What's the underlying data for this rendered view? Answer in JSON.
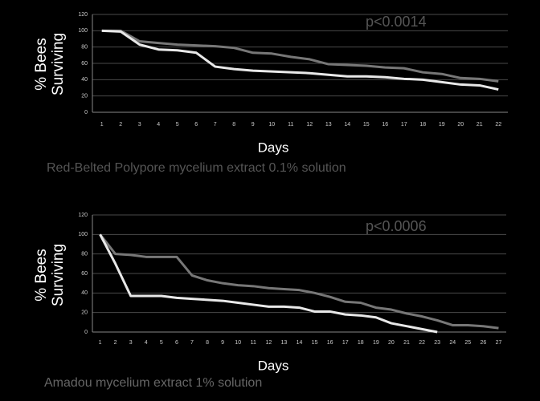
{
  "chart_data": [
    {
      "type": "line",
      "annotation": "p<0.0014",
      "x_label": "Days",
      "y_label": "% Bees Surviving",
      "caption": "Red-Belted Polypore mycelium extract 0.1% solution",
      "categories": [
        "1",
        "2",
        "3",
        "4",
        "5",
        "6",
        "7",
        "8",
        "9",
        "10",
        "11",
        "12",
        "13",
        "14",
        "15",
        "16",
        "17",
        "18",
        "19",
        "20",
        "21",
        "22"
      ],
      "ylim": [
        0,
        120
      ],
      "yticks": [
        0,
        20,
        40,
        60,
        80,
        100,
        120
      ],
      "grid": true,
      "series": [
        {
          "color": "#777777",
          "values": [
            100,
            100,
            87,
            85,
            83,
            82,
            81,
            79,
            73,
            72,
            68,
            65,
            59,
            58,
            57,
            55,
            54,
            49,
            47,
            42,
            41,
            38
          ]
        },
        {
          "color": "#e8e8e8",
          "values": [
            100,
            99,
            83,
            77,
            76,
            73,
            56,
            53,
            51,
            50,
            49,
            48,
            46,
            44,
            44,
            43,
            41,
            40,
            37,
            34,
            33,
            28
          ]
        }
      ]
    },
    {
      "type": "line",
      "annotation": "p<0.0006",
      "x_label": "Days",
      "y_label": "% Bees Surviving",
      "caption": "Amadou mycelium extract 1% solution",
      "categories": [
        "1",
        "2",
        "3",
        "4",
        "5",
        "6",
        "7",
        "8",
        "9",
        "10",
        "11",
        "12",
        "13",
        "14",
        "15",
        "16",
        "17",
        "18",
        "19",
        "20",
        "21",
        "22",
        "23",
        "24",
        "25",
        "26",
        "27"
      ],
      "ylim": [
        0,
        120
      ],
      "yticks": [
        0,
        20,
        40,
        60,
        80,
        100,
        120
      ],
      "grid": true,
      "series": [
        {
          "color": "#777777",
          "values": [
            100,
            80,
            79,
            77,
            77,
            77,
            58,
            53,
            50,
            48,
            47,
            45,
            44,
            43,
            40,
            36,
            31,
            30,
            25,
            23,
            19,
            16,
            12,
            7,
            7,
            6,
            4
          ]
        },
        {
          "color": "#e8e8e8",
          "values": [
            100,
            70,
            37,
            37,
            37,
            35,
            34,
            33,
            32,
            30,
            28,
            26,
            26,
            25,
            21,
            21,
            18,
            17,
            15,
            9,
            6,
            3,
            0,
            null,
            null,
            null,
            null
          ]
        }
      ]
    }
  ]
}
